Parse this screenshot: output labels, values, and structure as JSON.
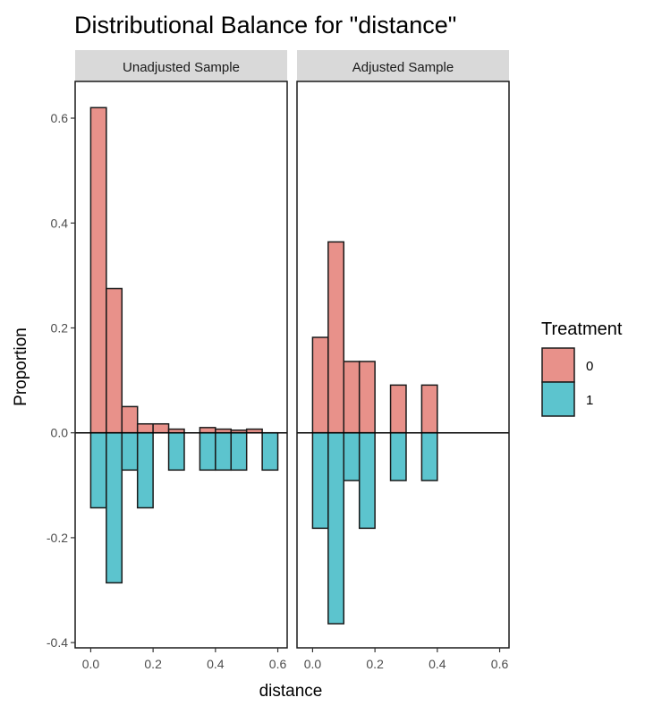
{
  "chart_data": {
    "type": "bar",
    "title": "Distributional Balance for \"distance\"",
    "xlabel": "distance",
    "ylabel": "Proportion",
    "xlim": [
      -0.05,
      0.63
    ],
    "ylim": [
      -0.41,
      0.67
    ],
    "x_ticks": [
      "0.0",
      "0.2",
      "0.4",
      "0.6"
    ],
    "y_ticks": [
      "0.6",
      "0.4",
      "0.2",
      "0.0",
      "-0.2",
      "-0.4"
    ],
    "x_tick_values": [
      0.0,
      0.2,
      0.4,
      0.6
    ],
    "y_tick_values": [
      0.6,
      0.4,
      0.2,
      0.0,
      -0.2,
      -0.4
    ],
    "bin_width": 0.05,
    "grid": false,
    "legend": {
      "title": "Treatment",
      "placement": "right",
      "items": [
        {
          "label": "0",
          "color": "#e8918a"
        },
        {
          "label": "1",
          "color": "#5cc4ce"
        }
      ]
    },
    "panels": [
      {
        "label": "Unadjusted Sample",
        "series": [
          {
            "group": "0",
            "color": "#e8918a",
            "bins": [
              {
                "x": 0.0,
                "y": 0.62
              },
              {
                "x": 0.05,
                "y": 0.275
              },
              {
                "x": 0.1,
                "y": 0.05
              },
              {
                "x": 0.15,
                "y": 0.017
              },
              {
                "x": 0.2,
                "y": 0.017
              },
              {
                "x": 0.25,
                "y": 0.007
              },
              {
                "x": 0.35,
                "y": 0.01
              },
              {
                "x": 0.4,
                "y": 0.007
              },
              {
                "x": 0.45,
                "y": 0.005
              },
              {
                "x": 0.5,
                "y": 0.007
              }
            ]
          },
          {
            "group": "1",
            "color": "#5cc4ce",
            "bins": [
              {
                "x": 0.0,
                "y": -0.143
              },
              {
                "x": 0.05,
                "y": -0.286
              },
              {
                "x": 0.1,
                "y": -0.071
              },
              {
                "x": 0.15,
                "y": -0.143
              },
              {
                "x": 0.25,
                "y": -0.071
              },
              {
                "x": 0.35,
                "y": -0.071
              },
              {
                "x": 0.4,
                "y": -0.071
              },
              {
                "x": 0.45,
                "y": -0.071
              },
              {
                "x": 0.55,
                "y": -0.071
              }
            ]
          }
        ]
      },
      {
        "label": "Adjusted Sample",
        "series": [
          {
            "group": "0",
            "color": "#e8918a",
            "bins": [
              {
                "x": 0.0,
                "y": 0.182
              },
              {
                "x": 0.05,
                "y": 0.364
              },
              {
                "x": 0.1,
                "y": 0.136
              },
              {
                "x": 0.15,
                "y": 0.136
              },
              {
                "x": 0.25,
                "y": 0.091
              },
              {
                "x": 0.35,
                "y": 0.091
              }
            ]
          },
          {
            "group": "1",
            "color": "#5cc4ce",
            "bins": [
              {
                "x": 0.0,
                "y": -0.182
              },
              {
                "x": 0.05,
                "y": -0.364
              },
              {
                "x": 0.1,
                "y": -0.091
              },
              {
                "x": 0.15,
                "y": -0.182
              },
              {
                "x": 0.25,
                "y": -0.091
              },
              {
                "x": 0.35,
                "y": -0.091
              }
            ]
          }
        ]
      }
    ]
  }
}
